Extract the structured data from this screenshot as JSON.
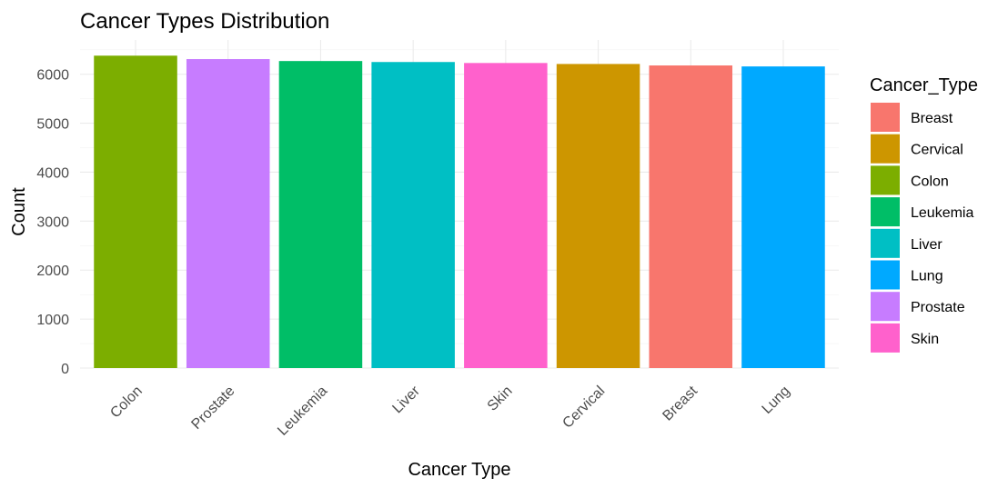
{
  "chart_data": {
    "type": "bar",
    "title": "Cancer Types Distribution",
    "xlabel": "Cancer Type",
    "ylabel": "Count",
    "categories": [
      "Colon",
      "Prostate",
      "Leukemia",
      "Liver",
      "Skin",
      "Cervical",
      "Breast",
      "Lung"
    ],
    "values": [
      6380,
      6310,
      6270,
      6250,
      6230,
      6210,
      6180,
      6160
    ],
    "ylim": [
      0,
      6700
    ],
    "yticks": [
      0,
      1000,
      2000,
      3000,
      4000,
      5000,
      6000
    ],
    "grid": true,
    "legend": {
      "title": "Cancer_Type",
      "placement": "right",
      "entries": [
        "Breast",
        "Cervical",
        "Colon",
        "Leukemia",
        "Liver",
        "Lung",
        "Prostate",
        "Skin"
      ]
    },
    "colors": {
      "Breast": "#F8766D",
      "Cervical": "#CD9600",
      "Colon": "#7CAE00",
      "Leukemia": "#00BE67",
      "Liver": "#00BFC4",
      "Lung": "#00A9FF",
      "Prostate": "#C77CFF",
      "Skin": "#FF61CC"
    }
  }
}
